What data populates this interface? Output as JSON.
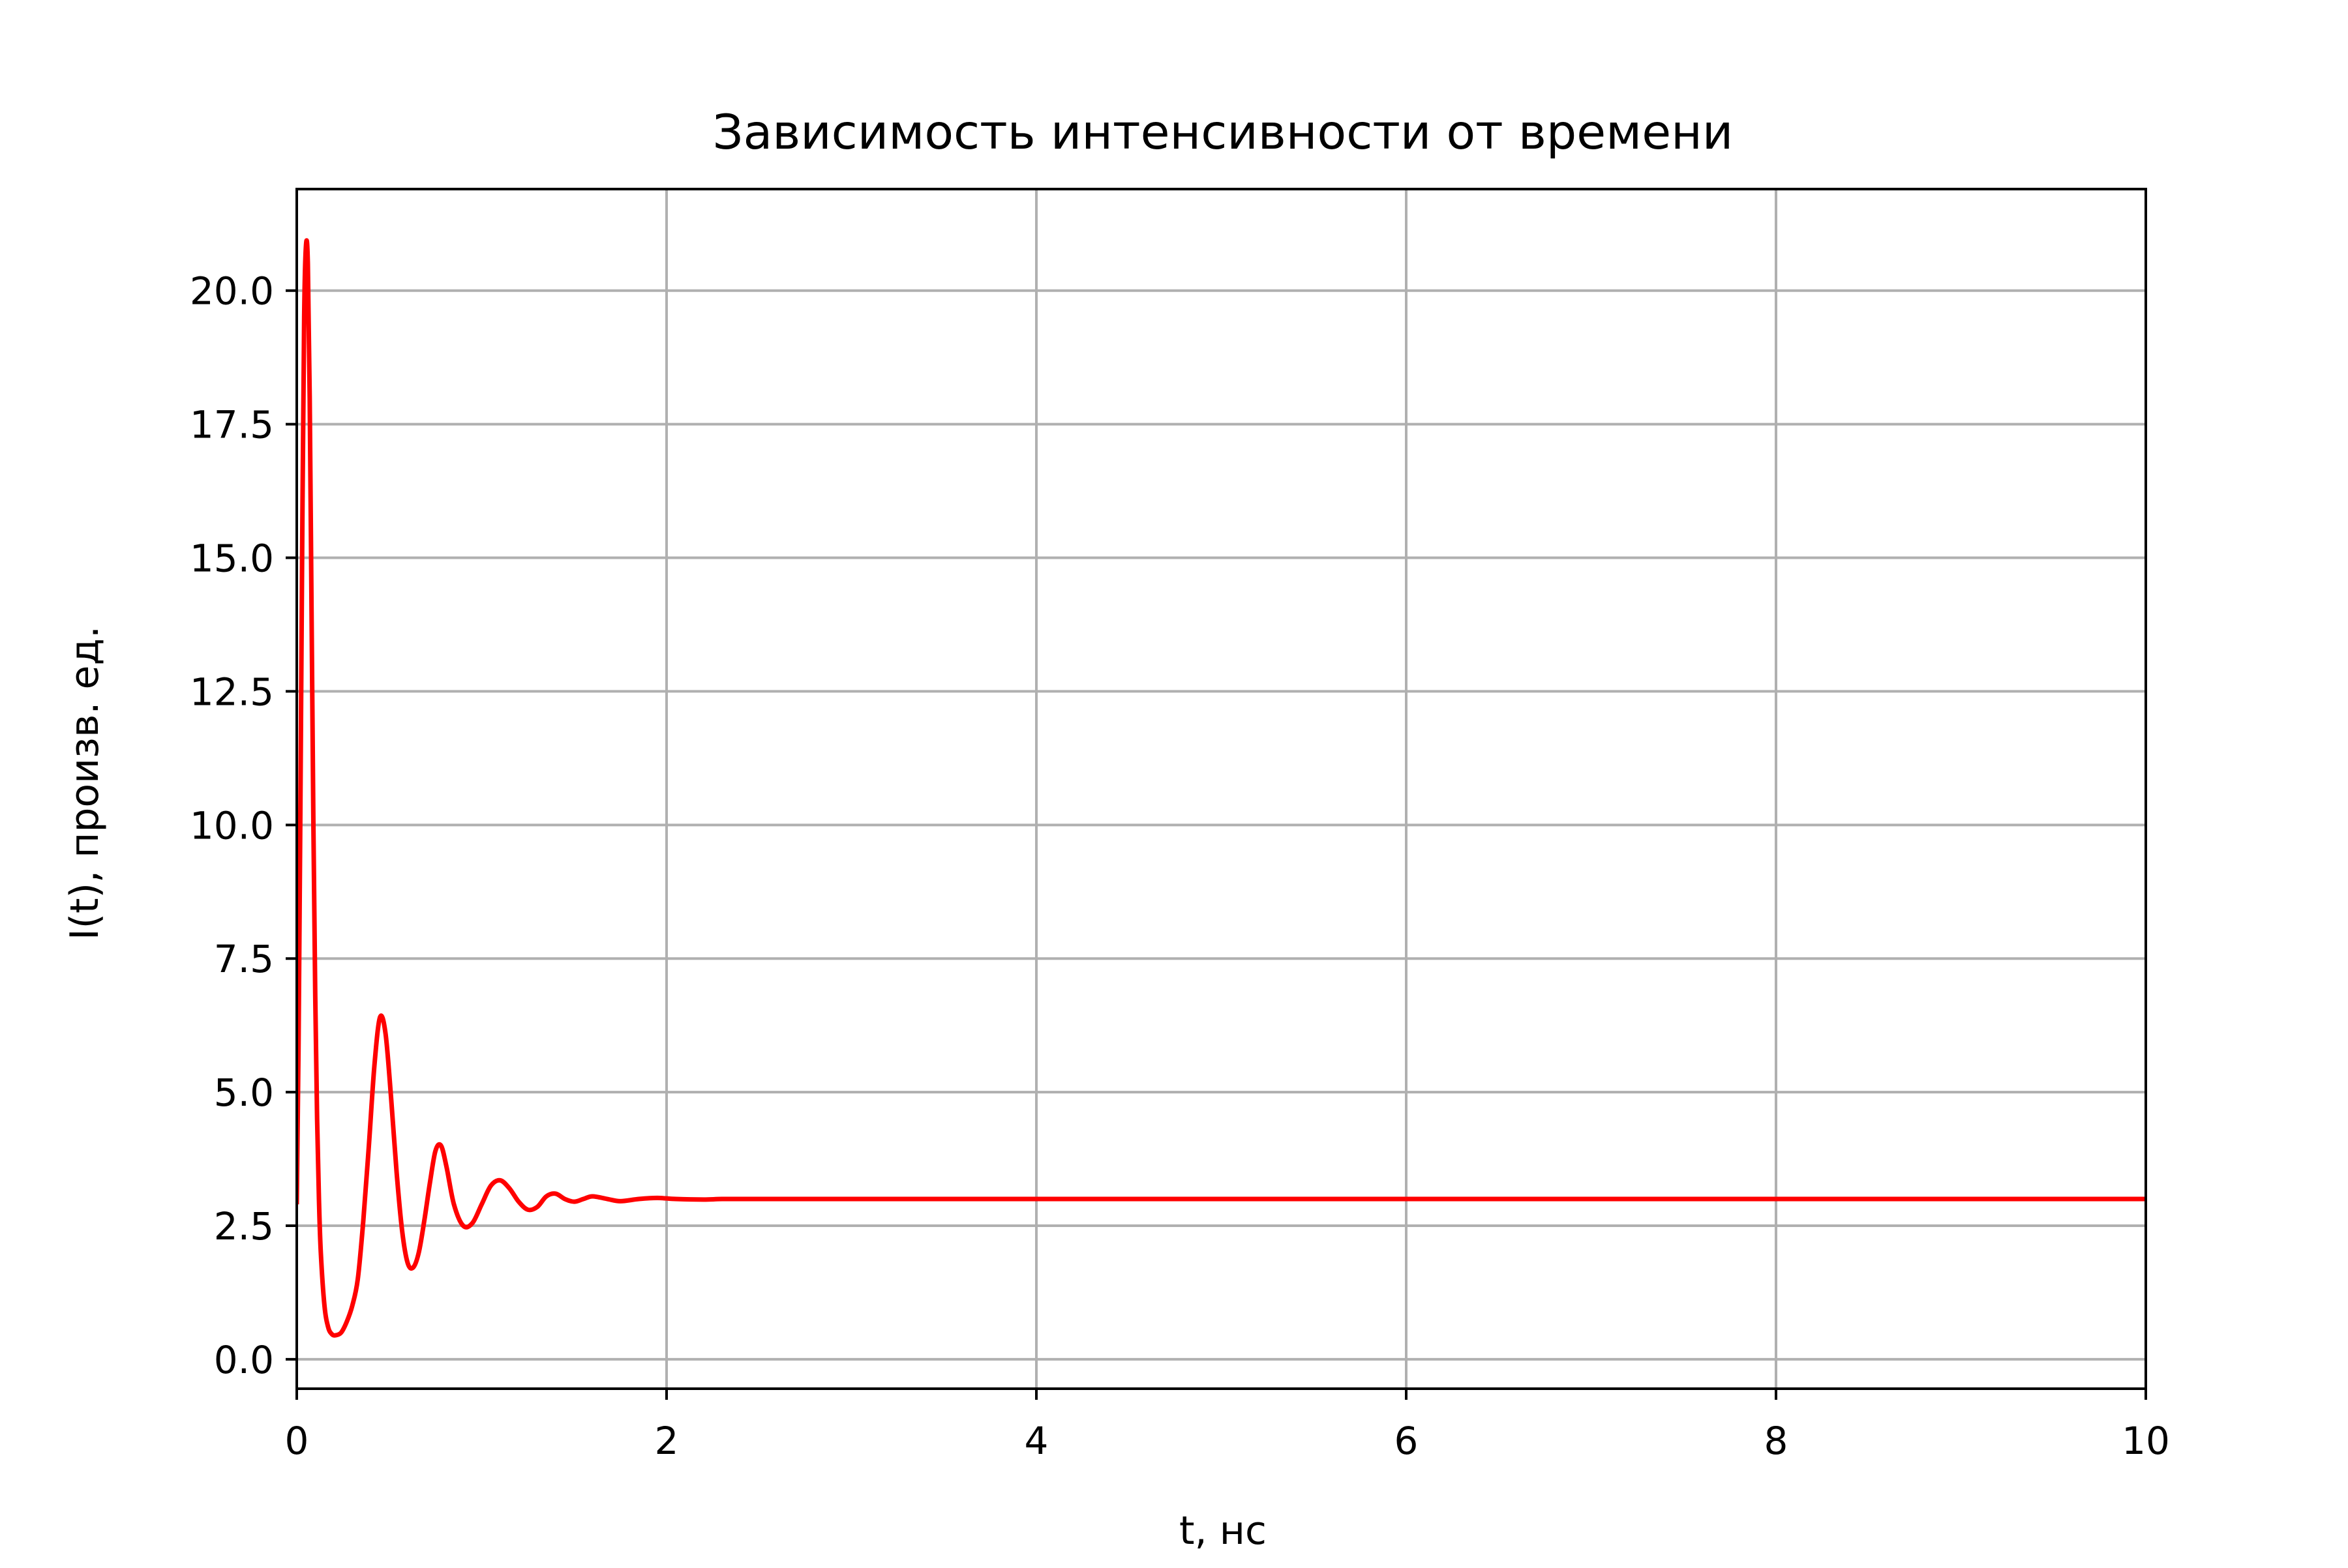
{
  "colors": {
    "background": "#ffffff",
    "line": "#ff0000",
    "grid": "#b0b0b0",
    "axes": "#000000"
  },
  "chart_data": {
    "type": "line",
    "title": "Зависимость интенсивности от времени",
    "xlabel": "t, нс",
    "ylabel": "I(t), произв. ед.",
    "xlim": [
      0,
      10
    ],
    "ylim": [
      -0.55,
      21.9
    ],
    "xticks": [
      0,
      2,
      4,
      6,
      8,
      10
    ],
    "xtick_labels": [
      "0",
      "2",
      "4",
      "6",
      "8",
      "10"
    ],
    "yticks": [
      0,
      2.5,
      5,
      7.5,
      10,
      12.5,
      15,
      17.5,
      20
    ],
    "ytick_labels": [
      "0.0",
      "2.5",
      "5.0",
      "7.5",
      "10.0",
      "12.5",
      "15.0",
      "17.5",
      "20.0"
    ],
    "grid": true,
    "legend": false,
    "series": [
      {
        "color": "#ff0000",
        "x": [
          0,
          0.01,
          0.02,
          0.03,
          0.04,
          0.05,
          0.06,
          0.07,
          0.08,
          0.09,
          0.1,
          0.11,
          0.12,
          0.13,
          0.15,
          0.17,
          0.19,
          0.21,
          0.24,
          0.27,
          0.3,
          0.33,
          0.36,
          0.39,
          0.42,
          0.45,
          0.48,
          0.51,
          0.54,
          0.57,
          0.6,
          0.63,
          0.66,
          0.69,
          0.72,
          0.75,
          0.78,
          0.81,
          0.85,
          0.9,
          0.95,
          1.0,
          1.05,
          1.1,
          1.15,
          1.2,
          1.25,
          1.3,
          1.35,
          1.4,
          1.45,
          1.5,
          1.55,
          1.6,
          1.68,
          1.75,
          1.85,
          1.95,
          2.05,
          2.2,
          2.3,
          2.45,
          2.6,
          2.75,
          2.95,
          3.2,
          3.45,
          3.7,
          4.0,
          4.5,
          5.0,
          6.0,
          7.0,
          8.0,
          9.0,
          10.0
        ],
        "y": [
          2.9,
          6.0,
          10.5,
          15.5,
          19.5,
          20.85,
          20.5,
          18.0,
          14.0,
          10.0,
          6.8,
          4.5,
          3.0,
          2.0,
          1.0,
          0.6,
          0.47,
          0.45,
          0.5,
          0.7,
          1.0,
          1.5,
          2.6,
          4.0,
          5.5,
          6.4,
          6.1,
          4.9,
          3.5,
          2.4,
          1.8,
          1.72,
          2.0,
          2.6,
          3.3,
          3.9,
          4.0,
          3.6,
          2.9,
          2.5,
          2.55,
          2.9,
          3.25,
          3.35,
          3.2,
          2.95,
          2.8,
          2.85,
          3.05,
          3.1,
          3.0,
          2.95,
          3.0,
          3.05,
          3.0,
          2.96,
          3.0,
          3.02,
          3.0,
          2.99,
          3.0,
          3.0,
          3.0,
          3.0,
          3.0,
          3.0,
          3.0,
          3.0,
          3.0,
          3.0,
          3.0,
          3.0,
          3.0,
          3.0,
          3.0,
          3.0
        ]
      }
    ]
  }
}
